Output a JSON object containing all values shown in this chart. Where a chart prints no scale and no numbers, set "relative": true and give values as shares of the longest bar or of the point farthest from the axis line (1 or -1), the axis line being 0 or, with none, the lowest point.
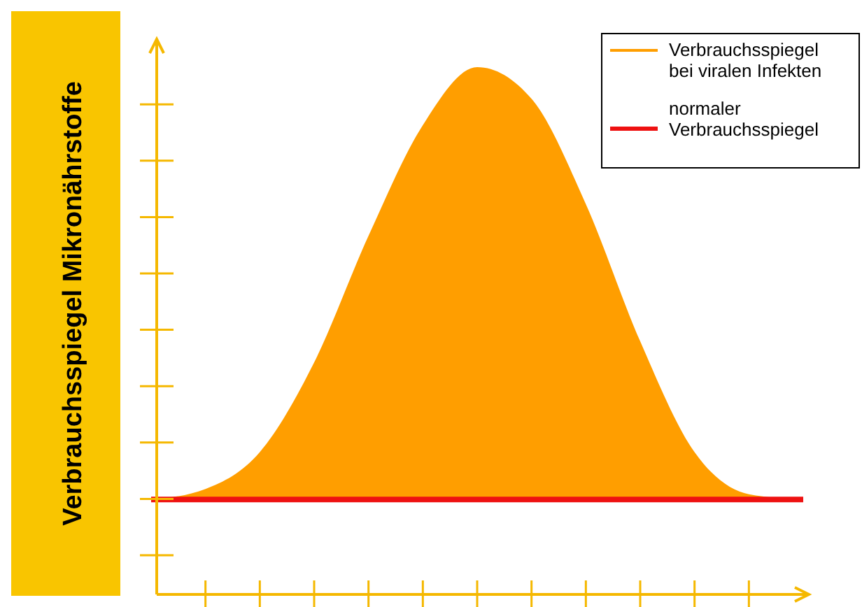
{
  "chart_data": {
    "type": "area",
    "ylabel": "Verbrauchsspiegel Mikronährstoffe",
    "relative": true,
    "legend": "top right",
    "categories": [
      null,
      null,
      null,
      null,
      null,
      null,
      null,
      null,
      null,
      null,
      null,
      null,
      null
    ],
    "series": [
      {
        "name": "Verbrauchsspiegel\nbei viralen Infekten",
        "color": "#ff9e00",
        "values": [
          0.18,
          0.2,
          0.27,
          0.44,
          0.68,
          0.89,
          1,
          0.94,
          0.74,
          0.48,
          0.27,
          0.19,
          0.18
        ]
      },
      {
        "name": "normaler\nVerbrauchsspiegel",
        "color": "#ee1111",
        "type": "line",
        "values": [
          0.18,
          0.18,
          0.18,
          0.18,
          0.18,
          0.18,
          0.18,
          0.18,
          0.18,
          0.18,
          0.18,
          0.18,
          0.18
        ]
      }
    ]
  }
}
